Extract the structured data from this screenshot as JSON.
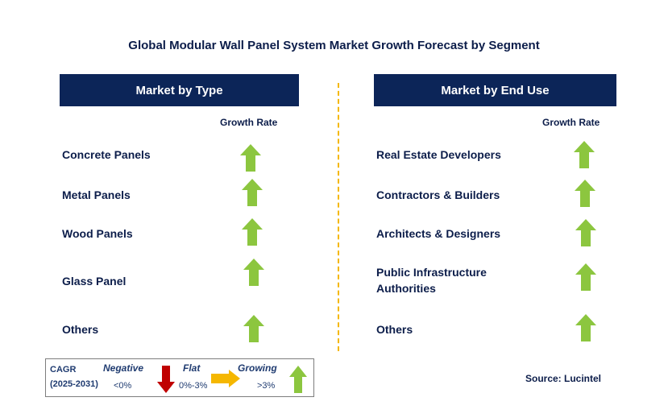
{
  "title": "Global Modular Wall Panel System Market Growth Forecast by Segment",
  "left_panel": {
    "header": "Market by Type",
    "growth_label": "Growth Rate",
    "items": [
      {
        "label": "Concrete Panels",
        "trend": "growing"
      },
      {
        "label": "Metal Panels",
        "trend": "growing"
      },
      {
        "label": "Wood Panels",
        "trend": "growing"
      },
      {
        "label": "Glass Panel",
        "trend": "growing"
      },
      {
        "label": "Others",
        "trend": "growing"
      }
    ]
  },
  "right_panel": {
    "header": "Market by End Use",
    "growth_label": "Growth Rate",
    "items": [
      {
        "label": "Real Estate Developers",
        "trend": "growing"
      },
      {
        "label": "Contractors & Builders",
        "trend": "growing"
      },
      {
        "label": "Architects & Designers",
        "trend": "growing"
      },
      {
        "label": "Public Infrastructure",
        "label_line2": "Authorities",
        "trend": "growing"
      },
      {
        "label": "Others",
        "trend": "growing"
      }
    ]
  },
  "legend": {
    "cagr_label": "CAGR",
    "period": "(2025-2031)",
    "negative_label": "Negative",
    "negative_value": "<0%",
    "flat_label": "Flat",
    "flat_value": "0%-3%",
    "growing_label": "Growing",
    "growing_value": ">3%"
  },
  "source": "Source: Lucintel",
  "colors": {
    "header_bg": "#0c2558",
    "growing": "#8cc63f",
    "flat": "#f5b700",
    "negative": "#c00000",
    "divider": "#f5b700"
  }
}
